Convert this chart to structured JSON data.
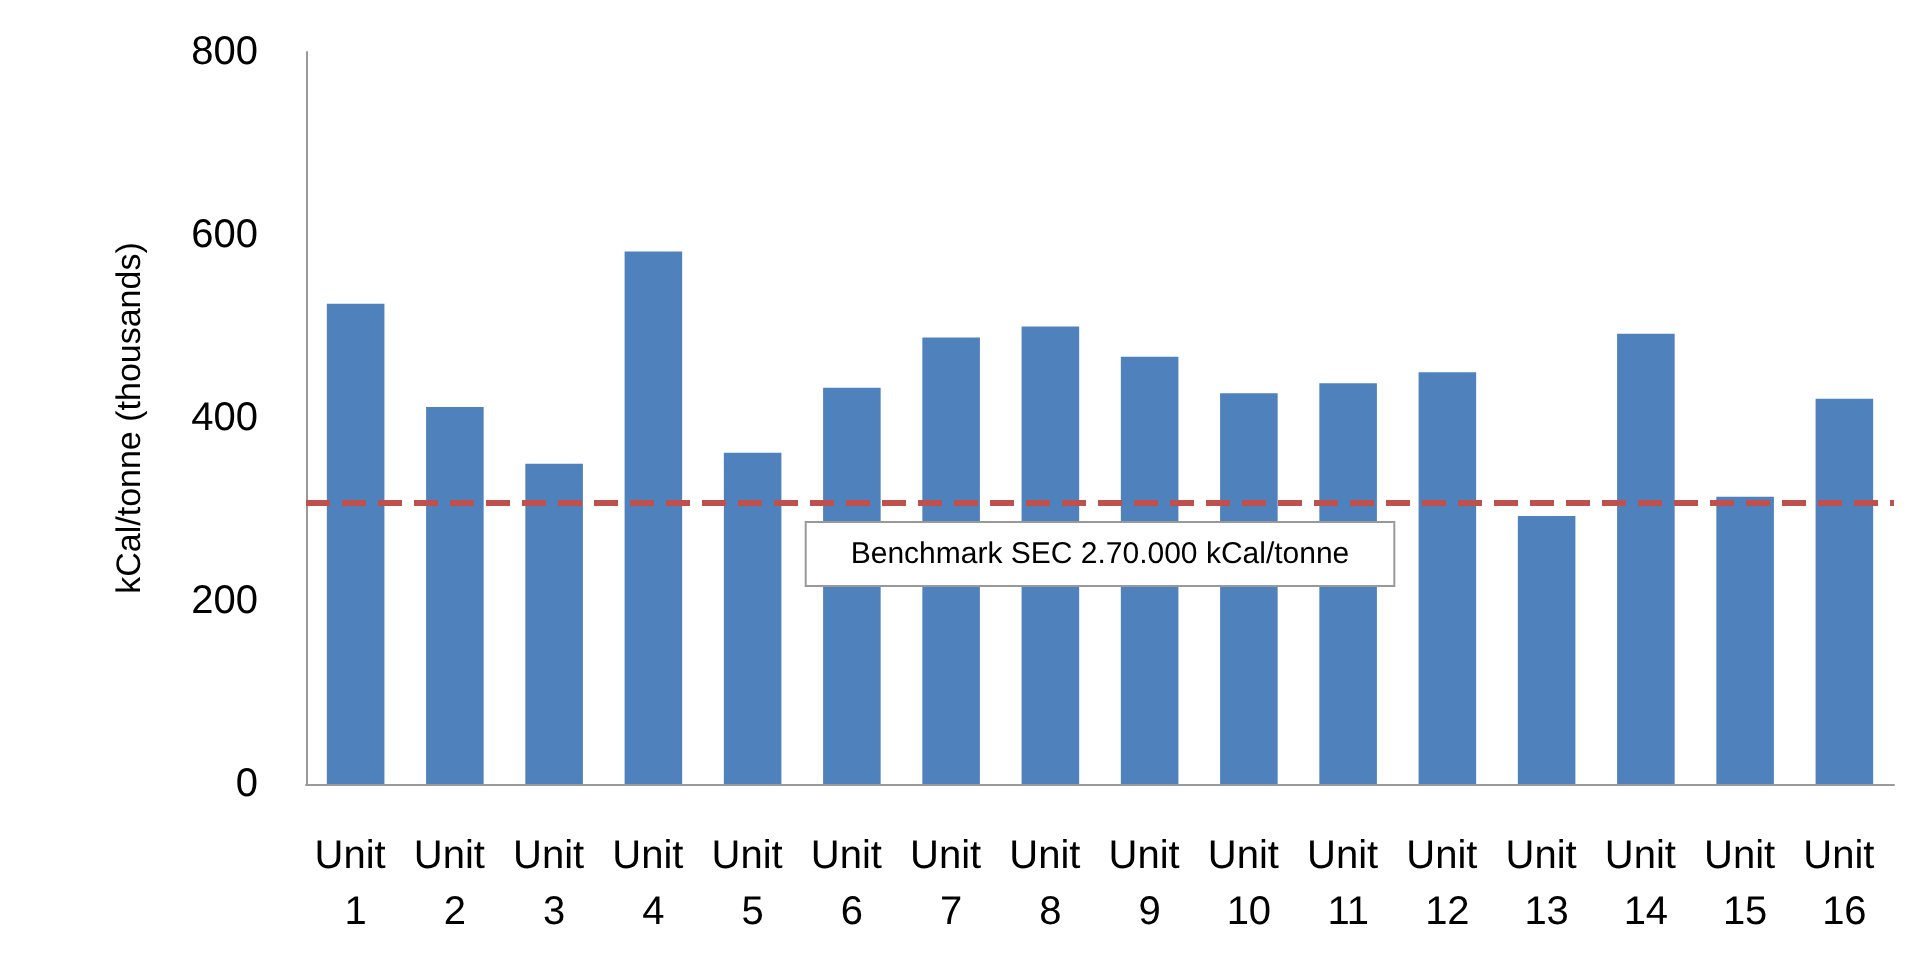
{
  "chart_data": {
    "type": "bar",
    "ylabel": "kCal/tonne (thousands)",
    "categories": [
      "Unit 1",
      "Unit 2",
      "Unit 3",
      "Unit 4",
      "Unit 5",
      "Unit 6",
      "Unit 7",
      "Unit 8",
      "Unit 9",
      "Unit 10",
      "Unit 11",
      "Unit 12",
      "Unit 13",
      "Unit 14",
      "Unit 15",
      "Unit 16"
    ],
    "values": [
      525,
      412,
      350,
      582,
      362,
      433,
      488,
      500,
      467,
      427,
      438,
      450,
      293,
      492,
      314,
      421
    ],
    "color": "#4f81bd",
    "ylim": [
      0,
      800
    ],
    "yticks": [
      0,
      200,
      400,
      600,
      800
    ],
    "grid": false,
    "ref_lines": [
      {
        "axis": "y",
        "value": 307,
        "label": "Benchmark SEC 2.70.000 kCal/tonne",
        "color": "#c0504d",
        "line_style": "dashed"
      }
    ]
  }
}
